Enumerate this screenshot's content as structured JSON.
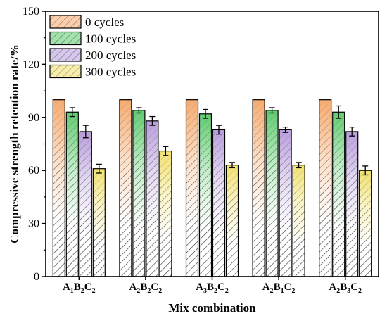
{
  "chart_data": {
    "type": "bar",
    "xlabel": "Mix combination",
    "ylabel": "Compressive strength retention rate/%",
    "ylim": [
      0,
      150
    ],
    "yticks": [
      0,
      30,
      60,
      90,
      120,
      150
    ],
    "categories": [
      {
        "base": "A",
        "s1": "1",
        "b": "B",
        "s2": "2",
        "c": "C",
        "s3": "2"
      },
      {
        "base": "A",
        "s1": "2",
        "b": "B",
        "s2": "2",
        "c": "C",
        "s3": "2"
      },
      {
        "base": "A",
        "s1": "3",
        "b": "B",
        "s2": "2",
        "c": "C",
        "s3": "2"
      },
      {
        "base": "A",
        "s1": "2",
        "b": "B",
        "s2": "1",
        "c": "C",
        "s3": "2"
      },
      {
        "base": "A",
        "s1": "2",
        "b": "B",
        "s2": "3",
        "c": "C",
        "s3": "2"
      }
    ],
    "series": [
      {
        "name": "0 cycles",
        "values": [
          100,
          100,
          100,
          100,
          100
        ],
        "errors": [
          0,
          0,
          0,
          0,
          0
        ],
        "color": "#F5A86A"
      },
      {
        "name": "100 cycles",
        "values": [
          93,
          94,
          92,
          94,
          93
        ],
        "errors": [
          2.5,
          1.5,
          2.5,
          1.5,
          3.5
        ],
        "color": "#5BC86B"
      },
      {
        "name": "200 cycles",
        "values": [
          82,
          88,
          83,
          83,
          82
        ],
        "errors": [
          3.5,
          2.5,
          2.5,
          1.5,
          2.5
        ],
        "color": "#B59AD9"
      },
      {
        "name": "300 cycles",
        "values": [
          61,
          71,
          63,
          63,
          60
        ],
        "errors": [
          2.5,
          2.5,
          1.5,
          1.5,
          2.5
        ],
        "color": "#F1E06A"
      }
    ],
    "legend_position": "top-left",
    "grid": false
  }
}
